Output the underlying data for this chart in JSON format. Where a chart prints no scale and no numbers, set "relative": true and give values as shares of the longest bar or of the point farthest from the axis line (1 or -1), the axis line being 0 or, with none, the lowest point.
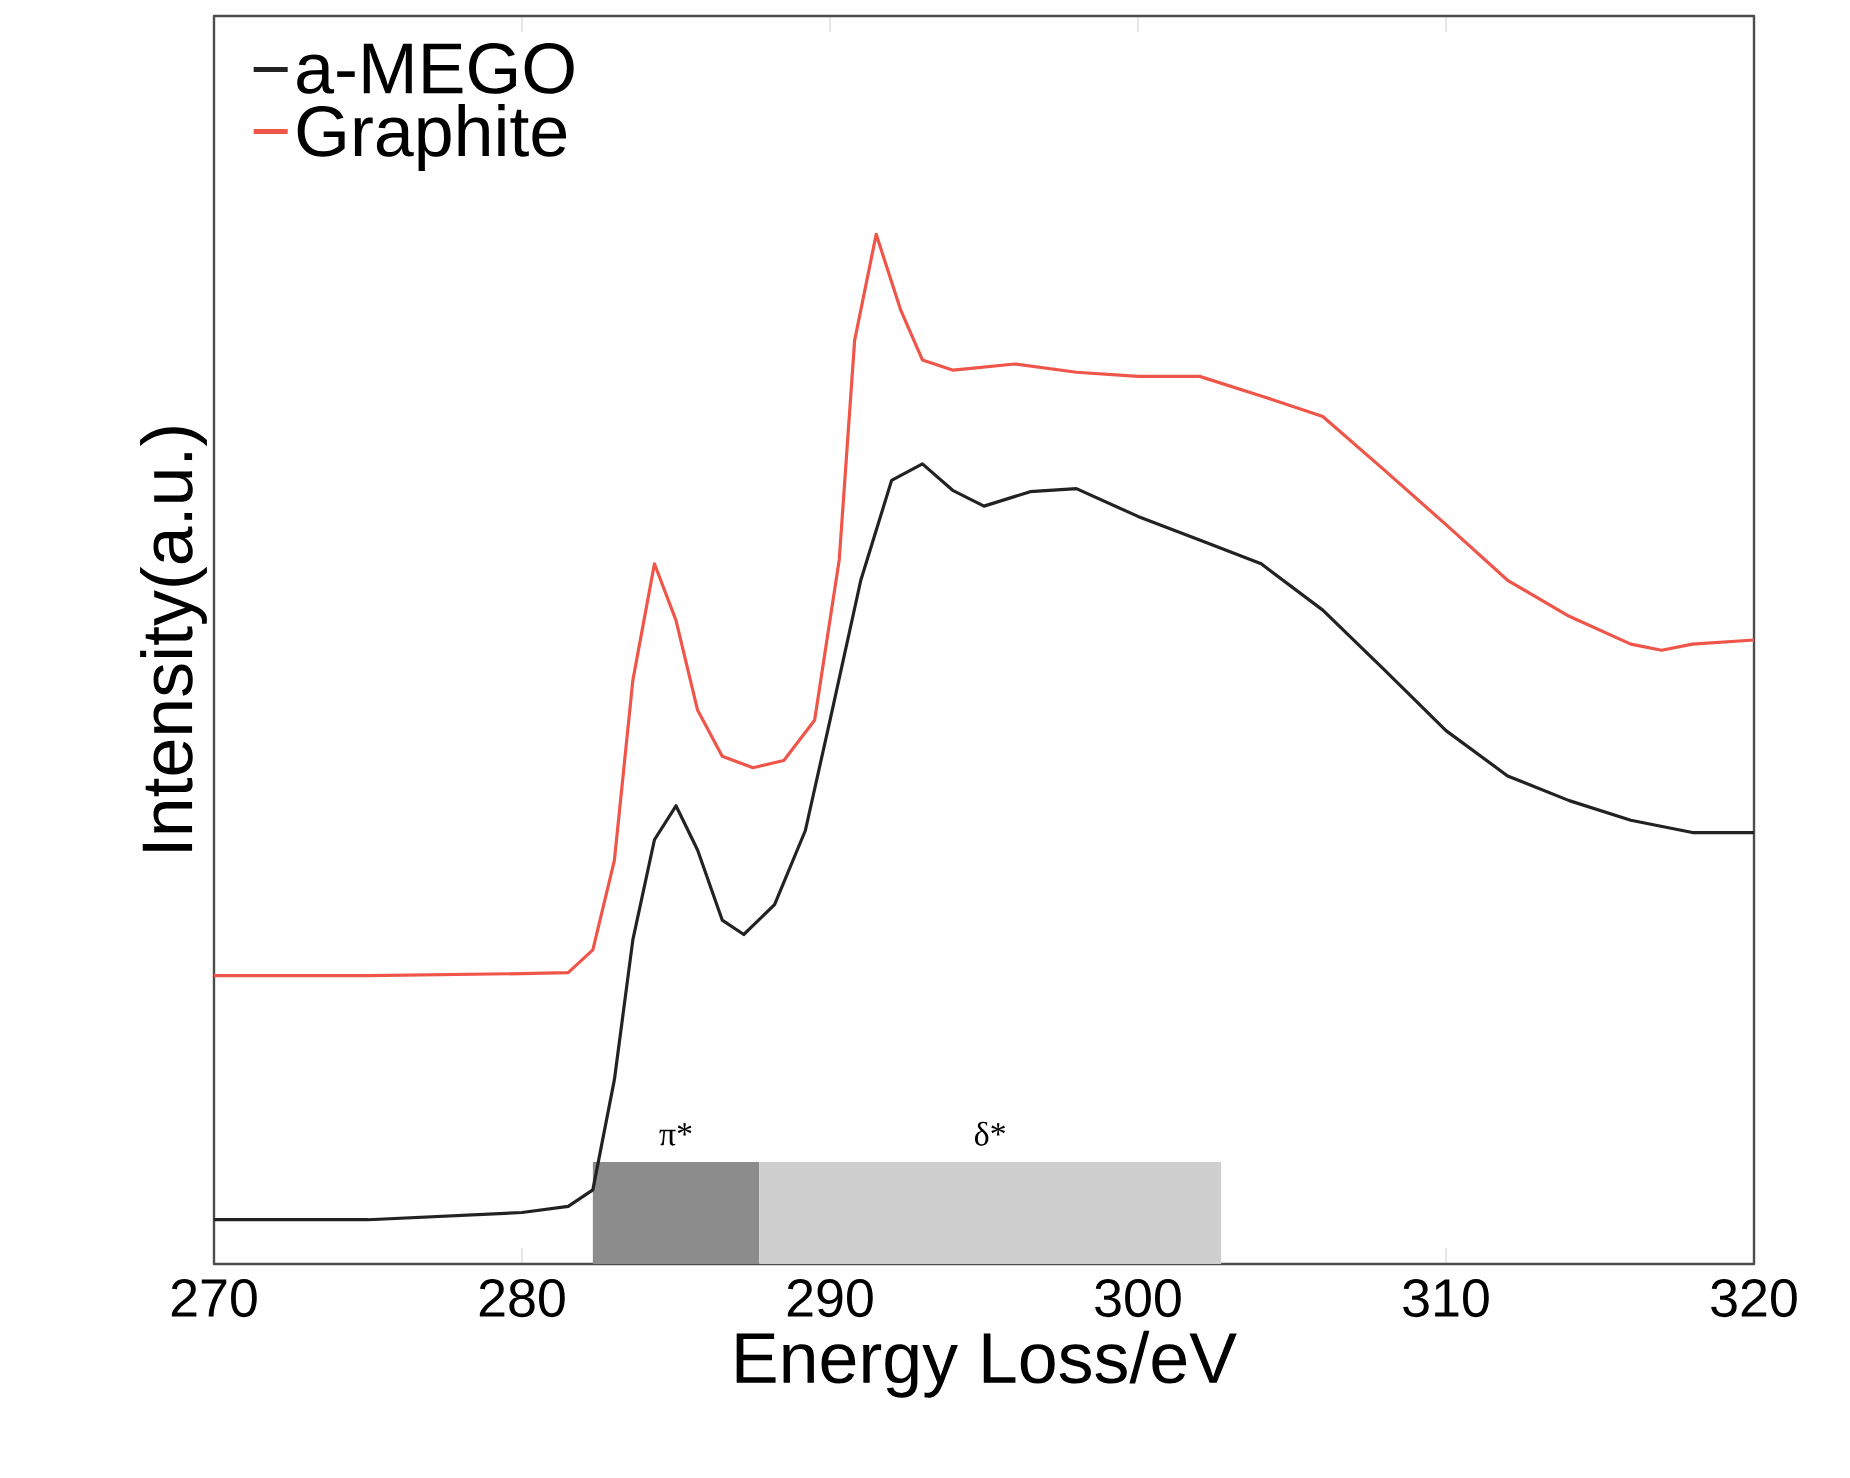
{
  "chart_data": {
    "type": "line",
    "relative": true,
    "xlabel": "Energy Loss/eV",
    "ylabel": "Intensity(a.u.)",
    "xlim": [
      270,
      320
    ],
    "xticks": [
      270,
      280,
      290,
      300,
      310,
      320
    ],
    "legend": "top left",
    "x": [
      270,
      275,
      280,
      281.5,
      282.3,
      283,
      283.6,
      284.3,
      285,
      285.7,
      286.5,
      287.5,
      288.5,
      289.5,
      290.3,
      290.8,
      291.5,
      292.3,
      293,
      294,
      296,
      298,
      300,
      302,
      304,
      306,
      308,
      310,
      312,
      314,
      316,
      317,
      318,
      320
    ],
    "series": [
      {
        "name": "a-MEGO",
        "color": "#222222",
        "x": [
          270,
          275,
          280,
          281.5,
          282.3,
          283,
          283.6,
          284.3,
          285,
          285.7,
          286.5,
          287.2,
          288.2,
          289.2,
          290,
          291,
          292,
          293,
          294,
          295,
          296.5,
          298,
          300,
          302,
          304,
          306,
          308,
          310,
          312,
          314,
          316,
          318,
          320
        ],
        "values": [
          0.043,
          0.043,
          0.05,
          0.056,
          0.072,
          0.179,
          0.315,
          0.412,
          0.445,
          0.402,
          0.334,
          0.32,
          0.349,
          0.421,
          0.528,
          0.664,
          0.761,
          0.777,
          0.751,
          0.736,
          0.75,
          0.753,
          0.726,
          0.703,
          0.68,
          0.635,
          0.577,
          0.518,
          0.474,
          0.45,
          0.431,
          0.419,
          0.419
        ]
      },
      {
        "name": "Graphite",
        "color": "#f0554a",
        "values": [
          0.28,
          0.28,
          0.282,
          0.283,
          0.305,
          0.392,
          0.567,
          0.68,
          0.625,
          0.538,
          0.493,
          0.482,
          0.489,
          0.528,
          0.684,
          0.897,
          1.0,
          0.926,
          0.878,
          0.868,
          0.874,
          0.866,
          0.862,
          0.862,
          0.843,
          0.823,
          0.771,
          0.718,
          0.664,
          0.629,
          0.602,
          0.596,
          0.602,
          0.606
        ]
      }
    ],
    "bands": [
      {
        "axis": "x",
        "from": 282.3,
        "to": 287.7,
        "label": "π*",
        "color": "#8c8c8c"
      },
      {
        "axis": "x",
        "from": 287.7,
        "to": 302.7,
        "label": "δ*",
        "color": "#cfcfcf"
      }
    ]
  }
}
